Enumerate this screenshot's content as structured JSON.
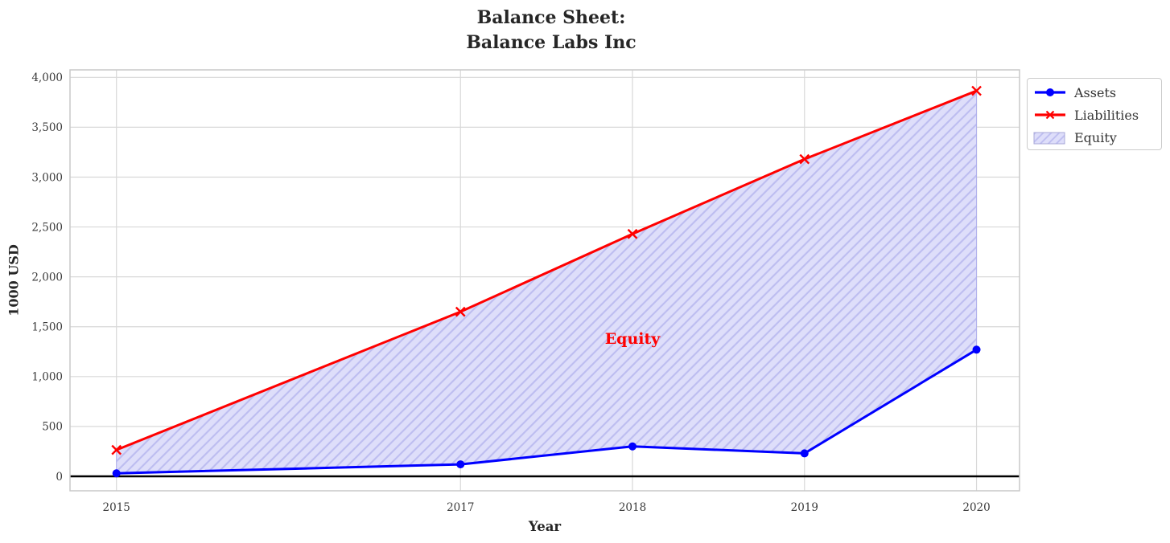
{
  "chart_data": {
    "type": "line",
    "title": "Balance Sheet:\nBalance Labs Inc",
    "title_lines": [
      "Balance Sheet:",
      "Balance Labs Inc"
    ],
    "xlabel": "Year",
    "ylabel": "1000 USD",
    "x": [
      2015,
      2017,
      2018,
      2019,
      2020
    ],
    "x_tick_labels": [
      "2015",
      "2017",
      "2018",
      "2019",
      "2020"
    ],
    "y_ticks": [
      0,
      500,
      1000,
      1500,
      2000,
      2500,
      3000,
      3500,
      4000
    ],
    "y_tick_labels": [
      "0",
      "500",
      "1,000",
      "1,500",
      "2,000",
      "2,500",
      "3,000",
      "3,500",
      "4,000"
    ],
    "xlim": [
      2014.73,
      2020.25
    ],
    "ylim": [
      -145,
      4075
    ],
    "grid": true,
    "series": [
      {
        "name": "Assets",
        "color": "#0000ff",
        "marker": "circle",
        "values": [
          30,
          120,
          300,
          230,
          1270
        ]
      },
      {
        "name": "Liabilities",
        "color": "#ff0000",
        "marker": "x",
        "values": [
          265,
          1650,
          2430,
          3180,
          3865
        ]
      }
    ],
    "fill_between": {
      "label": "Equity",
      "fill_color": "#dedefa",
      "hatch_color": "#bdbdf0",
      "edge_color": "#b0b0ec",
      "annotation": {
        "text": "Equity",
        "x": 2018,
        "y": 1380,
        "color": "#ff0000"
      }
    },
    "zero_line": {
      "value": 0,
      "color": "#000000"
    },
    "legend": {
      "position": "outside-top-right",
      "entries": [
        "Assets",
        "Liabilities",
        "Equity"
      ]
    }
  }
}
